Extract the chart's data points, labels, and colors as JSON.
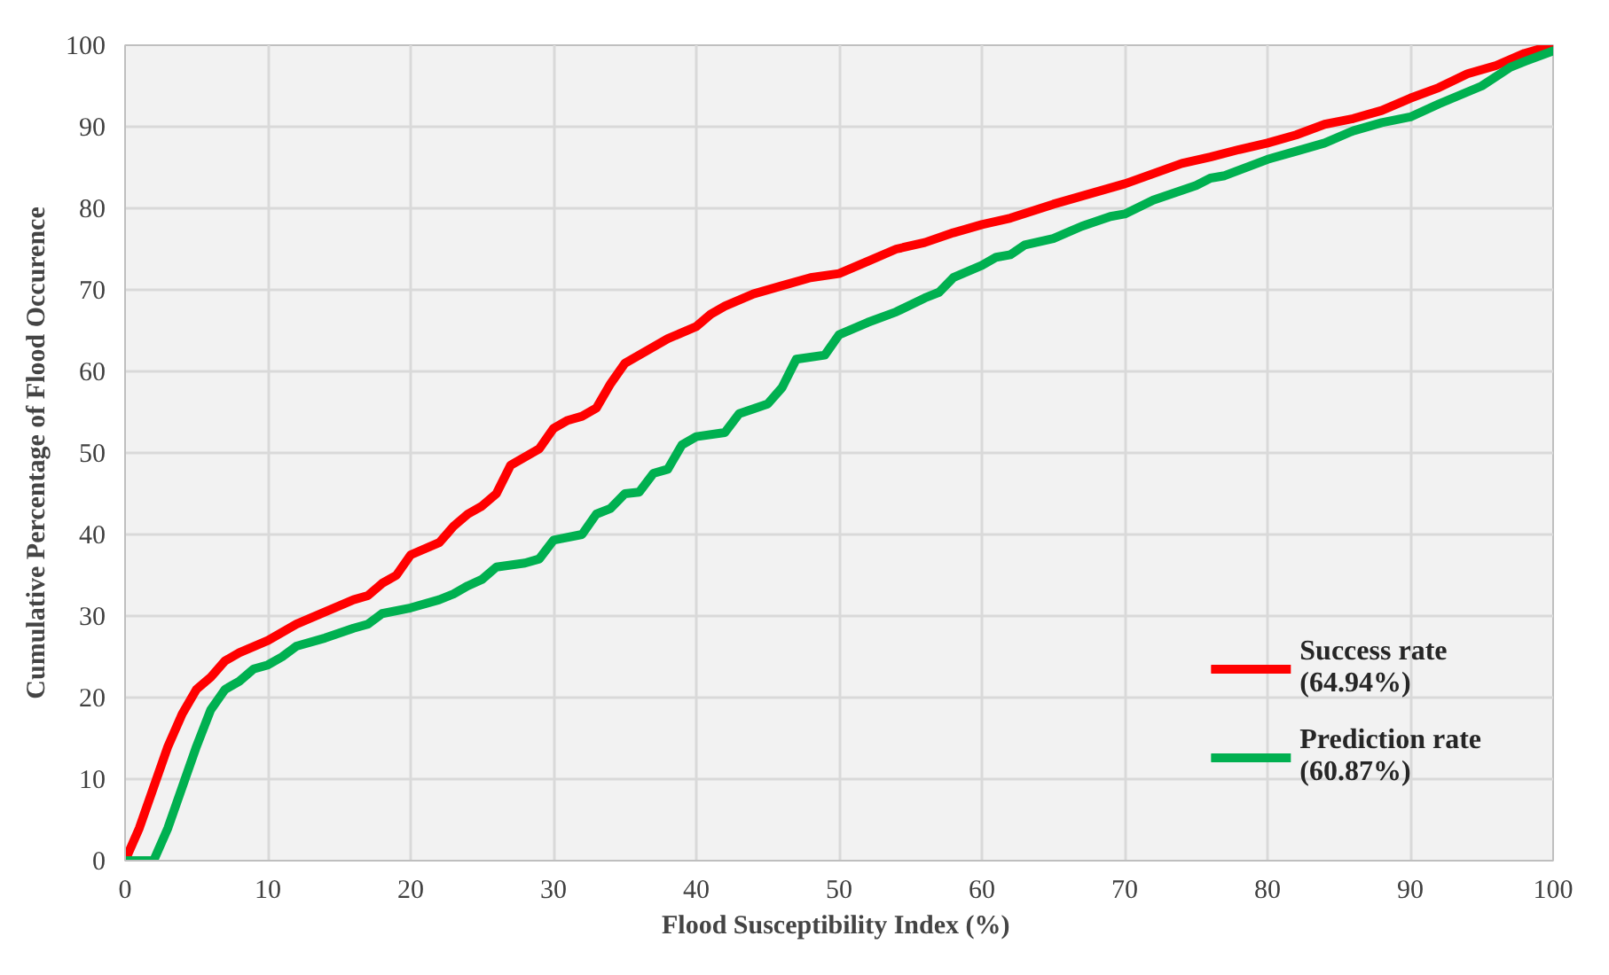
{
  "chart_data": {
    "type": "line",
    "xlabel": "Flood Susceptibility  Index (%)",
    "ylabel": "Cumulative Percentage of Flood Occurence",
    "xlim": [
      0,
      100
    ],
    "ylim": [
      0,
      100
    ],
    "xticks": [
      0,
      10,
      20,
      30,
      40,
      50,
      60,
      70,
      80,
      90,
      100
    ],
    "yticks": [
      0,
      10,
      20,
      30,
      40,
      50,
      60,
      70,
      80,
      90,
      100
    ],
    "grid": true,
    "legend": "bottom right",
    "line_style": "solid",
    "marker": "none",
    "series": [
      {
        "name": "Success rate\n(64.94%)",
        "color": "#ff0000",
        "x": [
          0,
          1,
          2,
          3,
          4,
          5,
          6,
          7,
          8,
          10,
          12,
          14,
          16,
          17,
          18,
          19,
          20,
          22,
          23,
          24,
          25,
          26,
          27,
          28,
          29,
          30,
          31,
          32,
          33,
          34,
          35,
          36,
          38,
          40,
          41,
          42,
          44,
          46,
          48,
          50,
          52,
          54,
          56,
          58,
          60,
          62,
          65,
          70,
          74,
          76,
          78,
          80,
          82,
          84,
          86,
          88,
          90,
          92,
          94,
          96,
          98,
          100
        ],
        "values": [
          0,
          4,
          9,
          14,
          18,
          21,
          22.5,
          24.5,
          25.5,
          27,
          29,
          30.5,
          32,
          32.5,
          34,
          35,
          37.5,
          39,
          41,
          42.5,
          43.5,
          45,
          48.5,
          49.5,
          50.5,
          53,
          54,
          54.5,
          55.5,
          58.5,
          61,
          62,
          64,
          65.5,
          67,
          68,
          69.5,
          70.5,
          71.5,
          72,
          73.5,
          75,
          75.8,
          77,
          78,
          78.8,
          80.5,
          83,
          85.5,
          86.3,
          87.2,
          88,
          89,
          90.3,
          91,
          92,
          93.5,
          94.8,
          96.5,
          97.5,
          99,
          100
        ]
      },
      {
        "name": "Prediction rate\n(60.87%)",
        "color": "#00b050",
        "x": [
          0,
          2,
          3,
          4,
          5,
          6,
          7,
          8,
          9,
          10,
          11,
          12,
          14,
          16,
          17,
          18,
          20,
          22,
          23,
          24,
          25,
          26,
          28,
          29,
          30,
          32,
          33,
          34,
          35,
          36,
          37,
          38,
          39,
          40,
          42,
          43,
          45,
          46,
          47,
          49,
          50,
          52,
          54,
          56,
          57,
          58,
          60,
          61,
          62,
          63,
          65,
          67,
          69,
          70,
          72,
          75,
          76,
          77,
          80,
          82,
          84,
          86,
          88,
          90,
          92,
          95,
          97,
          98,
          100
        ],
        "values": [
          0,
          0,
          4,
          9,
          14,
          18.5,
          21,
          22,
          23.5,
          24,
          25,
          26.3,
          27.3,
          28.5,
          29,
          30.3,
          31,
          32,
          32.7,
          33.7,
          34.5,
          36,
          36.5,
          37,
          39.3,
          40,
          42.5,
          43.2,
          45,
          45.2,
          47.5,
          48,
          51,
          52,
          52.5,
          54.8,
          56,
          58,
          61.5,
          62,
          64.5,
          66,
          67.3,
          69,
          69.7,
          71.5,
          73,
          74,
          74.3,
          75.5,
          76.3,
          77.8,
          79,
          79.3,
          81,
          82.8,
          83.7,
          84,
          86,
          87,
          88,
          89.5,
          90.5,
          91.2,
          92.8,
          95,
          97.3,
          98,
          99.3
        ]
      }
    ]
  }
}
